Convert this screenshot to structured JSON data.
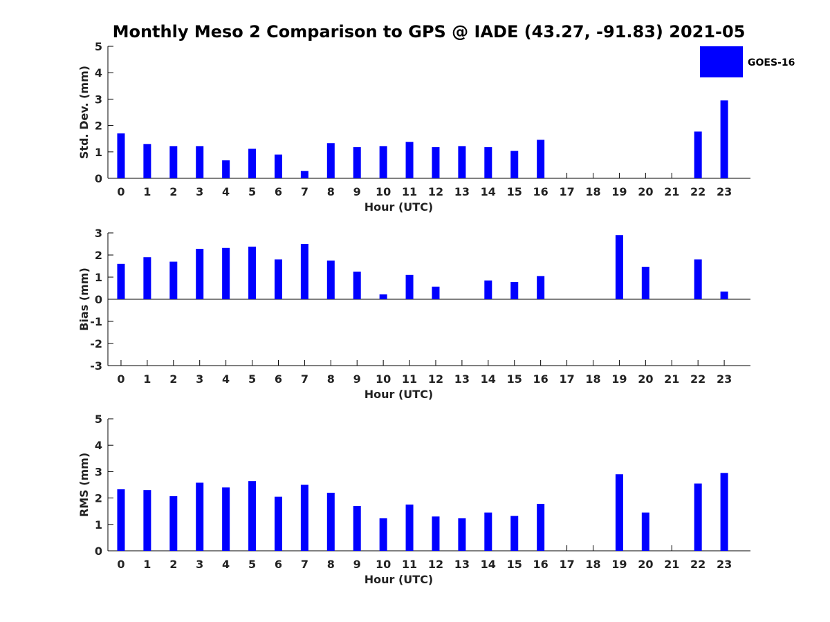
{
  "title": "Monthly Meso 2 Comparison to GPS @ IADE (43.27, -91.83) 2021-05",
  "legend": {
    "label": "GOES-16",
    "color": "#0000ff"
  },
  "chart_data": [
    {
      "type": "bar",
      "name": "std_dev",
      "xlabel": "Hour (UTC)",
      "ylabel": "Std. Dev. (mm)",
      "ylim": [
        0,
        5
      ],
      "yticks": [
        "0",
        "1",
        "2",
        "3",
        "4",
        "5"
      ],
      "categories": [
        "0",
        "1",
        "2",
        "3",
        "4",
        "5",
        "6",
        "7",
        "8",
        "9",
        "10",
        "11",
        "12",
        "13",
        "14",
        "15",
        "16",
        "17",
        "18",
        "19",
        "20",
        "21",
        "22",
        "23"
      ],
      "series": [
        {
          "name": "GOES-16",
          "color": "#0000ff",
          "values": [
            1.7,
            1.3,
            1.22,
            1.22,
            0.68,
            1.12,
            0.9,
            0.28,
            1.33,
            1.18,
            1.22,
            1.38,
            1.18,
            1.22,
            1.18,
            1.04,
            1.46,
            null,
            null,
            null,
            null,
            null,
            1.77,
            2.95
          ]
        }
      ],
      "grid": false
    },
    {
      "type": "bar",
      "name": "bias",
      "xlabel": "Hour (UTC)",
      "ylabel": "Bias (mm)",
      "ylim": [
        -3,
        3
      ],
      "yticks": [
        "-3",
        "-2",
        "-1",
        "0",
        "1",
        "2",
        "3"
      ],
      "categories": [
        "0",
        "1",
        "2",
        "3",
        "4",
        "5",
        "6",
        "7",
        "8",
        "9",
        "10",
        "11",
        "12",
        "13",
        "14",
        "15",
        "16",
        "17",
        "18",
        "19",
        "20",
        "21",
        "22",
        "23"
      ],
      "series": [
        {
          "name": "GOES-16",
          "color": "#0000ff",
          "values": [
            1.6,
            1.9,
            1.7,
            2.28,
            2.32,
            2.38,
            1.8,
            2.5,
            1.75,
            1.25,
            0.22,
            1.1,
            0.57,
            null,
            0.85,
            0.78,
            1.05,
            null,
            null,
            2.9,
            1.47,
            null,
            1.8,
            0.35
          ]
        }
      ],
      "grid": false
    },
    {
      "type": "bar",
      "name": "rms",
      "xlabel": "Hour (UTC)",
      "ylabel": "RMS (mm)",
      "ylim": [
        0,
        5
      ],
      "yticks": [
        "0",
        "1",
        "2",
        "3",
        "4",
        "5"
      ],
      "categories": [
        "0",
        "1",
        "2",
        "3",
        "4",
        "5",
        "6",
        "7",
        "8",
        "9",
        "10",
        "11",
        "12",
        "13",
        "14",
        "15",
        "16",
        "17",
        "18",
        "19",
        "20",
        "21",
        "22",
        "23"
      ],
      "series": [
        {
          "name": "GOES-16",
          "color": "#0000ff",
          "values": [
            2.33,
            2.3,
            2.07,
            2.58,
            2.4,
            2.64,
            2.05,
            2.5,
            2.2,
            1.7,
            1.23,
            1.75,
            1.3,
            1.23,
            1.45,
            1.32,
            1.78,
            null,
            null,
            2.9,
            1.45,
            null,
            2.55,
            2.95
          ]
        }
      ],
      "grid": false
    }
  ]
}
